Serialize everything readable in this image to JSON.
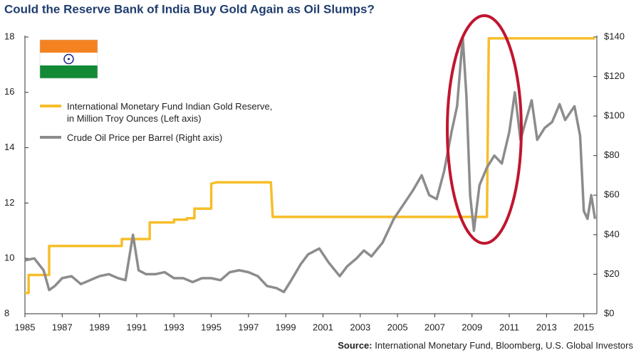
{
  "chart_data": {
    "type": "line",
    "title": "Could the Reserve Bank of India Buy Gold Again as Oil Slumps?",
    "source_label": "Source:",
    "source": "International Monetary Fund, Bloomberg, U.S. Global Investors",
    "xlim": [
      1985,
      2015.7
    ],
    "xticks": [
      1985,
      1987,
      1989,
      1991,
      1993,
      1995,
      1997,
      1999,
      2001,
      2003,
      2005,
      2007,
      2009,
      2011,
      2013,
      2015
    ],
    "ylim": [
      8,
      18
    ],
    "yticks": [
      8,
      10,
      12,
      14,
      16,
      18
    ],
    "y2lim": [
      0,
      140
    ],
    "y2ticks": [
      {
        "value": 0,
        "label": "$0"
      },
      {
        "value": 20,
        "label": "$20"
      },
      {
        "value": 40,
        "label": "$40"
      },
      {
        "value": 60,
        "label": "$60"
      },
      {
        "value": 80,
        "label": "$80"
      },
      {
        "value": 100,
        "label": "$100"
      },
      {
        "value": 120,
        "label": "$120"
      },
      {
        "value": 140,
        "label": "$140"
      }
    ],
    "grid": false,
    "series": [
      {
        "name": "International Monetary Fund Indian Gold Reserve, in Million Troy Ounces (Left axis)",
        "color": "#f7be2a",
        "axis": "y",
        "x": [
          1985,
          1985.2,
          1985.2,
          1986.3,
          1986.3,
          1990.2,
          1990.2,
          1991.7,
          1991.7,
          1993,
          1993,
          1993.7,
          1993.7,
          1994.1,
          1994.1,
          1995,
          1995,
          1995.3,
          1998.2,
          1998.3,
          2009.8,
          2009.9,
          2015.6
        ],
        "values": [
          8.75,
          8.75,
          9.4,
          9.4,
          10.45,
          10.45,
          10.7,
          10.7,
          11.3,
          11.3,
          11.4,
          11.4,
          11.45,
          11.45,
          11.8,
          11.8,
          12.7,
          12.75,
          12.75,
          11.5,
          11.5,
          17.95,
          17.95
        ]
      },
      {
        "name": "Crude Oil Price per Barrel (Right axis)",
        "color": "#8c8c8c",
        "axis": "y2",
        "x": [
          1985,
          1985.5,
          1986,
          1986.3,
          1986.6,
          1987,
          1987.5,
          1988,
          1988.5,
          1989,
          1989.5,
          1990,
          1990.4,
          1990.8,
          1991.1,
          1991.5,
          1992,
          1992.5,
          1993,
          1993.5,
          1994,
          1994.5,
          1995,
          1995.5,
          1996,
          1996.5,
          1997,
          1997.5,
          1998,
          1998.5,
          1998.9,
          1999.3,
          1999.8,
          2000.2,
          2000.8,
          2001.3,
          2001.9,
          2002.3,
          2002.8,
          2003.2,
          2003.6,
          2004.2,
          2004.8,
          2005.3,
          2005.8,
          2006.3,
          2006.7,
          2007.1,
          2007.5,
          2007.9,
          2008.2,
          2008.5,
          2008.7,
          2008.9,
          2009.1,
          2009.4,
          2009.8,
          2010.2,
          2010.6,
          2011,
          2011.3,
          2011.6,
          2011.9,
          2012.2,
          2012.5,
          2012.9,
          2013.3,
          2013.7,
          2014,
          2014.5,
          2014.8,
          2015,
          2015.2,
          2015.4,
          2015.6
        ],
        "values": [
          27,
          28,
          22,
          12,
          14,
          18,
          19,
          15,
          17,
          19,
          20,
          18,
          17,
          40,
          22,
          20,
          20,
          21,
          18,
          18,
          16,
          18,
          18,
          17,
          21,
          22,
          21,
          19,
          14,
          13,
          11,
          17,
          25,
          30,
          33,
          26,
          19,
          24,
          28,
          32,
          29,
          36,
          48,
          55,
          62,
          70,
          60,
          58,
          72,
          92,
          105,
          140,
          110,
          60,
          42,
          65,
          74,
          80,
          76,
          92,
          112,
          88,
          98,
          108,
          88,
          94,
          97,
          106,
          98,
          105,
          90,
          52,
          48,
          60,
          48
        ]
      }
    ]
  }
}
